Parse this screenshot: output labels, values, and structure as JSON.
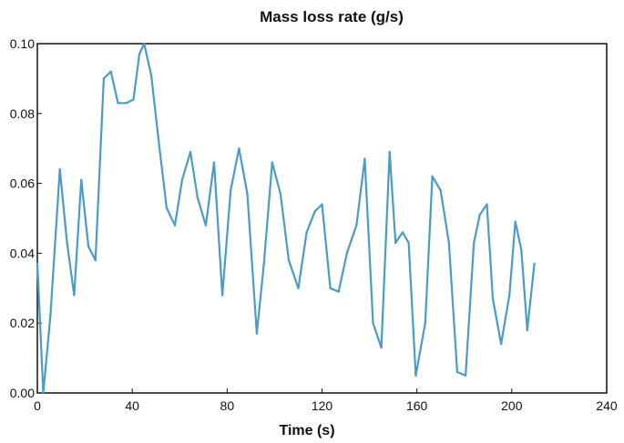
{
  "chart_data": {
    "type": "line",
    "title": "Mass loss rate (g/s)",
    "xlabel": "Time (s)",
    "ylabel": "",
    "xlim": [
      0,
      240
    ],
    "ylim": [
      0,
      0.1
    ],
    "xticks": [
      "0",
      "40",
      "80",
      "120",
      "160",
      "200",
      "240"
    ],
    "yticks": [
      "0.00",
      "0.02",
      "0.04",
      "0.06",
      "0.08",
      "0.10"
    ],
    "grid": false,
    "line_color": "#4a9cc8",
    "series": [
      {
        "name": "",
        "x": [
          0,
          2.5,
          5.5,
          9.5,
          12.5,
          15.5,
          18.5,
          21.5,
          24.5,
          28,
          31,
          34,
          37.5,
          40.5,
          43,
          45,
          48,
          51,
          54.5,
          58,
          61,
          64.5,
          67.5,
          71,
          74.5,
          78,
          81.5,
          85,
          88.5,
          92.5,
          95.5,
          99,
          102.5,
          106,
          110,
          113.5,
          117,
          120,
          123.5,
          127,
          130.5,
          134.5,
          138,
          141.5,
          145,
          148.5,
          151,
          154,
          156.5,
          159.5,
          163.5,
          166.5,
          170,
          173.5,
          177,
          180.5,
          184,
          186.5,
          189.5,
          192,
          195.5,
          199,
          201.5,
          204,
          206.5,
          209.5
        ],
        "y": [
          0.037,
          0.0,
          0.022,
          0.064,
          0.043,
          0.028,
          0.061,
          0.042,
          0.038,
          0.09,
          0.092,
          0.083,
          0.083,
          0.084,
          0.097,
          0.1,
          0.091,
          0.073,
          0.053,
          0.048,
          0.061,
          0.069,
          0.056,
          0.048,
          0.066,
          0.028,
          0.058,
          0.07,
          0.057,
          0.017,
          0.037,
          0.066,
          0.057,
          0.038,
          0.03,
          0.046,
          0.052,
          0.054,
          0.03,
          0.029,
          0.04,
          0.048,
          0.067,
          0.02,
          0.013,
          0.069,
          0.043,
          0.046,
          0.043,
          0.005,
          0.02,
          0.062,
          0.058,
          0.043,
          0.006,
          0.005,
          0.043,
          0.051,
          0.054,
          0.027,
          0.014,
          0.028,
          0.049,
          0.041,
          0.018,
          0.037
        ]
      }
    ]
  }
}
